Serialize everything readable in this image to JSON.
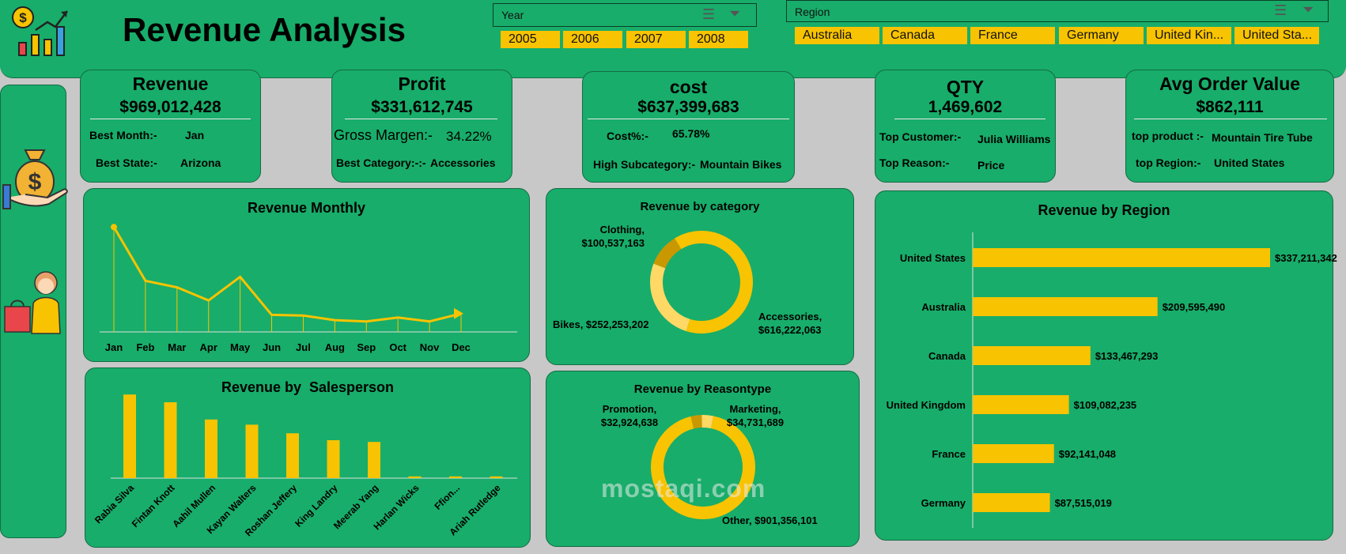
{
  "title": "Revenue Analysis",
  "slicers": {
    "year": {
      "label": "Year",
      "items": [
        "2005",
        "2006",
        "2007",
        "2008"
      ]
    },
    "region": {
      "label": "Region",
      "items": [
        "Australia",
        "Canada",
        "France",
        "Germany",
        "United Kin...",
        "United Sta..."
      ]
    }
  },
  "kpis": {
    "revenue": {
      "title": "Revenue",
      "value": "$969,012,428",
      "row1_label": "Best Month:-",
      "row1_value": "Jan",
      "row2_label": "Best State:-",
      "row2_value": "Arizona"
    },
    "profit": {
      "title": "Profit",
      "value": "$331,612,745",
      "row1_label": "Gross Margen:-",
      "row1_value": "34.22%",
      "row2_label": "Best Category:-:-",
      "row2_value": "Accessories"
    },
    "cost": {
      "title": "cost",
      "value": "$637,399,683",
      "row1_label": "Cost%:-",
      "row1_value": "65.78%",
      "row2_label": "High Subcategory:-",
      "row2_value": "Mountain Bikes"
    },
    "qty": {
      "title": "QTY",
      "value": "1,469,602",
      "row1_label": "Top Customer:-",
      "row1_value": "Julia Williams",
      "row2_label": "Top Reason:-",
      "row2_value": "Price"
    },
    "aov": {
      "title": "Avg Order Value",
      "value": "$862,111",
      "row1_label": "top product :-",
      "row1_value": "Mountain Tire Tube",
      "row2_label": "top Region:-",
      "row2_value": "United States"
    }
  },
  "colors": {
    "panel": "#18ad6a",
    "accent": "#f8c300",
    "accent_dark": "#c99800",
    "accent_light": "#ffd866"
  },
  "watermark": "mostaqi.com",
  "chart_data": [
    {
      "id": "monthly",
      "type": "line",
      "title": "Revenue Monthly",
      "categories": [
        "Jan",
        "Feb",
        "Mar",
        "Apr",
        "May",
        "Jun",
        "Jul",
        "Aug",
        "Sep",
        "Oct",
        "Nov",
        "Dec"
      ],
      "values": [
        160,
        78,
        68,
        48,
        84,
        26,
        25,
        18,
        16,
        22,
        16,
        28
      ],
      "ylim": [
        0,
        170
      ]
    },
    {
      "id": "category",
      "type": "pie",
      "title": "Revenue by category",
      "labels": [
        "Accessories",
        "Bikes",
        "Clothing"
      ],
      "values": [
        616222063,
        252253202,
        100537163
      ],
      "label_text": [
        "Accessories,\n$616,222,063",
        "Bikes, $252,253,202",
        "Clothing,\n$100,537,163"
      ]
    },
    {
      "id": "region",
      "type": "bar",
      "title": "Revenue by Region",
      "categories": [
        "United States",
        "Australia",
        "Canada",
        "United Kingdom",
        "France",
        "Germany"
      ],
      "values": [
        337211342,
        209595490,
        133467293,
        109082235,
        92141048,
        87515019
      ],
      "value_labels": [
        "$337,211,342",
        "$209,595,490",
        "$133,467,293",
        "$109,082,235",
        "$92,141,048",
        "$87,515,019"
      ]
    },
    {
      "id": "salesperson",
      "type": "bar",
      "title": "Revenue by  Salesperson",
      "categories": [
        "Rabia Silva",
        "Fintan Knott",
        "Aahil Mullen",
        "Kayan Walters",
        "Roshan Jeffery",
        "King Landry",
        "Meerab Yang",
        "Harlan Wicks",
        "Ffion...",
        "Ariah Rutledge"
      ],
      "values": [
        97,
        88,
        68,
        62,
        52,
        44,
        42,
        2,
        2,
        2
      ],
      "ylim": [
        0,
        110
      ]
    },
    {
      "id": "reason",
      "type": "pie",
      "title": "Revenue by Reasontype",
      "labels": [
        "Other",
        "Promotion",
        "Marketing"
      ],
      "values": [
        901356101,
        32924638,
        34731689
      ],
      "label_text": [
        "Other, $901,356,101",
        "Promotion,\n$32,924,638",
        "Marketing,\n$34,731,689"
      ]
    }
  ]
}
